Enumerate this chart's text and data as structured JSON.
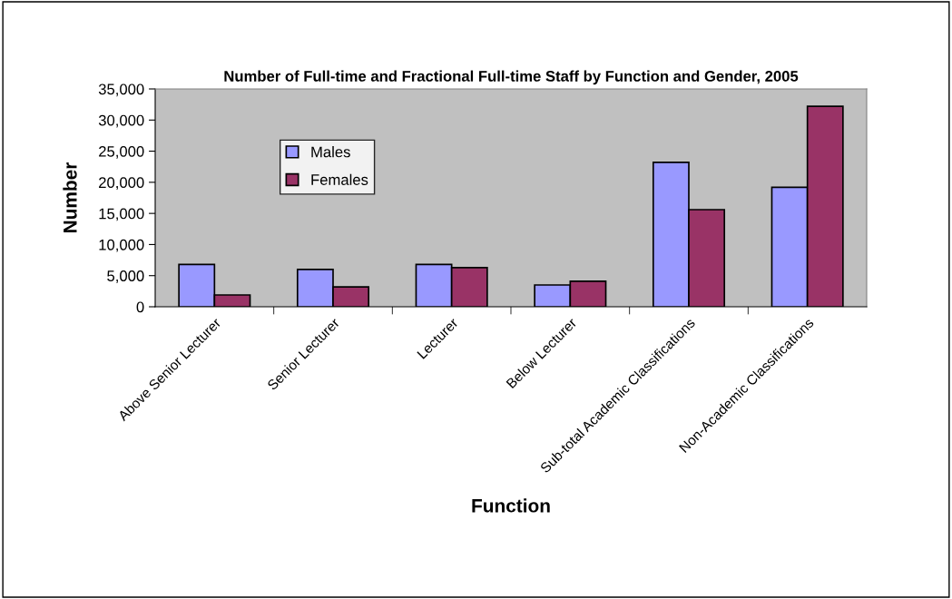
{
  "chart_data": {
    "type": "bar",
    "title": "Number of Full-time and Fractional Full-time Staff by Function and Gender, 2005",
    "xlabel": "Function",
    "ylabel": "Number",
    "categories": [
      "Above Senior Lecturer",
      "Senior Lecturer",
      "Lecturer",
      "Below Lecturer",
      "Sub-total Academic Classifications",
      "Non-Academic Classifications"
    ],
    "series": [
      {
        "name": "Males",
        "color": "#9999ff",
        "values": [
          6800,
          6000,
          6800,
          3500,
          23200,
          19200
        ]
      },
      {
        "name": "Females",
        "color": "#993366",
        "values": [
          1900,
          3200,
          6300,
          4100,
          15600,
          32200
        ]
      }
    ],
    "ylim": [
      0,
      35000
    ],
    "yticks": [
      {
        "value": 0,
        "label": "0"
      },
      {
        "value": 5000,
        "label": "5,000"
      },
      {
        "value": 10000,
        "label": "10,000"
      },
      {
        "value": 15000,
        "label": "15,000"
      },
      {
        "value": 20000,
        "label": "20,000"
      },
      {
        "value": 25000,
        "label": "25,000"
      },
      {
        "value": 30000,
        "label": "30,000"
      },
      {
        "value": 35000,
        "label": "35,000"
      }
    ],
    "grid": false,
    "legend": "top left"
  }
}
